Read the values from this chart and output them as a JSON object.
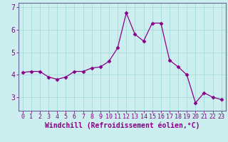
{
  "x": [
    0,
    1,
    2,
    3,
    4,
    5,
    6,
    7,
    8,
    9,
    10,
    11,
    12,
    13,
    14,
    15,
    16,
    17,
    18,
    19,
    20,
    21,
    22,
    23
  ],
  "y": [
    4.1,
    4.15,
    4.15,
    3.9,
    3.8,
    3.9,
    4.15,
    4.15,
    4.3,
    4.35,
    4.6,
    5.2,
    6.75,
    5.8,
    5.5,
    6.3,
    6.3,
    4.65,
    4.35,
    4.0,
    2.75,
    3.2,
    3.0,
    2.9
  ],
  "line_color": "#880088",
  "marker": "D",
  "marker_size": 2.5,
  "bg_color": "#cceeee",
  "grid_color": "#aadddd",
  "xlabel": "Windchill (Refroidissement éolien,°C)",
  "ylim": [
    2.4,
    7.2
  ],
  "xlim": [
    -0.5,
    23.5
  ],
  "yticks": [
    3,
    4,
    5,
    6,
    7
  ],
  "xticks": [
    0,
    1,
    2,
    3,
    4,
    5,
    6,
    7,
    8,
    9,
    10,
    11,
    12,
    13,
    14,
    15,
    16,
    17,
    18,
    19,
    20,
    21,
    22,
    23
  ],
  "font_size": 6,
  "xlabel_fontsize": 7,
  "spine_color": "#666699",
  "tick_color": "#880088"
}
